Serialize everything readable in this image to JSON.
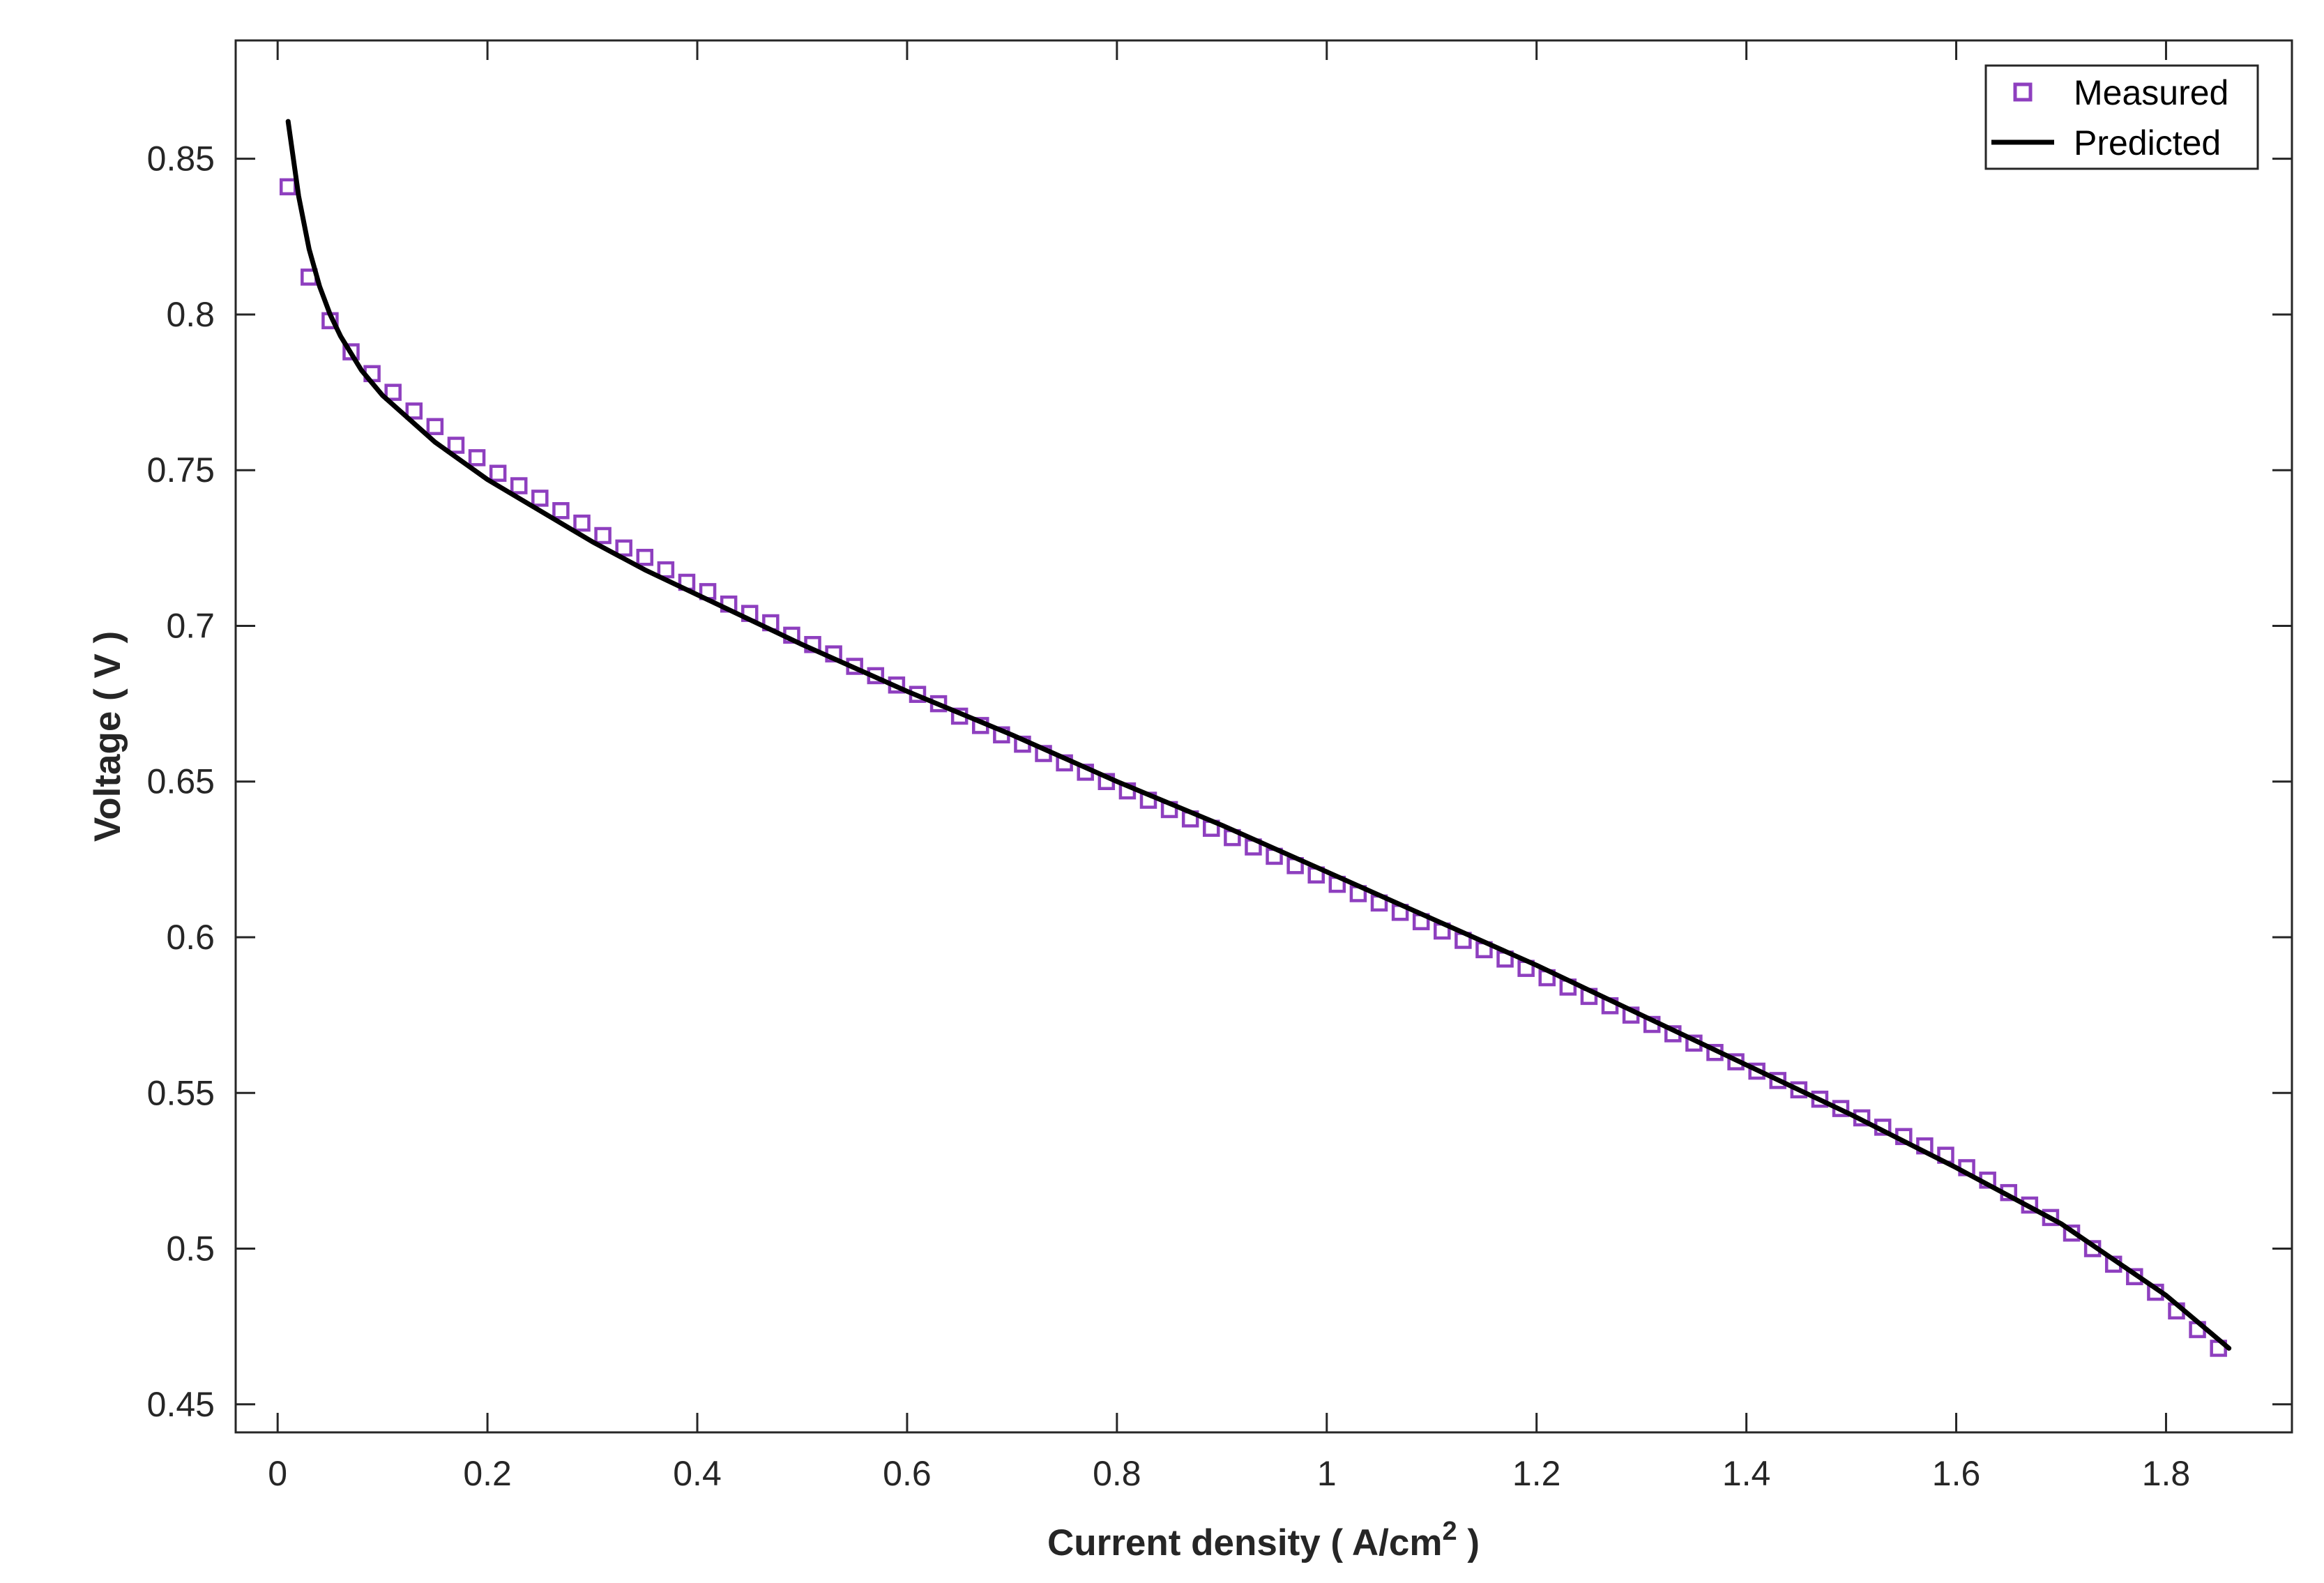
{
  "chart_data": {
    "type": "line",
    "xlabel": "Current density ( A/cm",
    "xlabel_sup": "2",
    "xlabel_end": " )",
    "ylabel": "Voltage ( V )",
    "xlim": [
      -0.04,
      1.92
    ],
    "ylim": [
      0.441,
      0.888
    ],
    "x_ticks": [
      0,
      0.2,
      0.4,
      0.6,
      0.8,
      1,
      1.2,
      1.4,
      1.6,
      1.8
    ],
    "x_tick_labels": [
      "0",
      "0.2",
      "0.4",
      "0.6",
      "0.8",
      "1",
      "1.2",
      "1.4",
      "1.6",
      "1.8"
    ],
    "y_ticks": [
      0.45,
      0.5,
      0.55,
      0.6,
      0.65,
      0.7,
      0.75,
      0.8,
      0.85
    ],
    "y_tick_labels": [
      "0.45",
      "0.5",
      "0.55",
      "0.6",
      "0.65",
      "0.7",
      "0.75",
      "0.8",
      "0.85"
    ],
    "grid": false,
    "legend_position": "top-right",
    "series": [
      {
        "name": "Measured",
        "style": "square-markers",
        "color": "#8e3fbf",
        "x": [
          0.01,
          0.03,
          0.05,
          0.07,
          0.09,
          0.11,
          0.13,
          0.15,
          0.17,
          0.19,
          0.21,
          0.23,
          0.25,
          0.27,
          0.29,
          0.31,
          0.33,
          0.35,
          0.37,
          0.39,
          0.41,
          0.43,
          0.45,
          0.47,
          0.49,
          0.51,
          0.53,
          0.55,
          0.57,
          0.59,
          0.61,
          0.63,
          0.65,
          0.67,
          0.69,
          0.71,
          0.73,
          0.75,
          0.77,
          0.79,
          0.81,
          0.83,
          0.85,
          0.87,
          0.89,
          0.91,
          0.93,
          0.95,
          0.97,
          0.99,
          1.01,
          1.03,
          1.05,
          1.07,
          1.09,
          1.11,
          1.13,
          1.15,
          1.17,
          1.19,
          1.21,
          1.23,
          1.25,
          1.27,
          1.29,
          1.31,
          1.33,
          1.35,
          1.37,
          1.39,
          1.41,
          1.43,
          1.45,
          1.47,
          1.49,
          1.51,
          1.53,
          1.55,
          1.57,
          1.59,
          1.61,
          1.63,
          1.65,
          1.67,
          1.69,
          1.71,
          1.73,
          1.75,
          1.77,
          1.79,
          1.81,
          1.83,
          1.85
        ],
        "y": [
          0.841,
          0.812,
          0.798,
          0.788,
          0.781,
          0.775,
          0.769,
          0.764,
          0.758,
          0.754,
          0.749,
          0.745,
          0.741,
          0.737,
          0.733,
          0.729,
          0.725,
          0.722,
          0.718,
          0.714,
          0.711,
          0.707,
          0.704,
          0.701,
          0.697,
          0.694,
          0.691,
          0.687,
          0.684,
          0.681,
          0.678,
          0.675,
          0.671,
          0.668,
          0.665,
          0.662,
          0.659,
          0.656,
          0.653,
          0.65,
          0.647,
          0.644,
          0.641,
          0.638,
          0.635,
          0.632,
          0.629,
          0.626,
          0.623,
          0.62,
          0.617,
          0.614,
          0.611,
          0.608,
          0.605,
          0.602,
          0.599,
          0.596,
          0.593,
          0.59,
          0.587,
          0.584,
          0.581,
          0.578,
          0.575,
          0.572,
          0.569,
          0.566,
          0.563,
          0.56,
          0.557,
          0.554,
          0.551,
          0.548,
          0.545,
          0.542,
          0.539,
          0.536,
          0.533,
          0.53,
          0.526,
          0.522,
          0.518,
          0.514,
          0.51,
          0.505,
          0.5,
          0.495,
          0.491,
          0.486,
          0.48,
          0.474,
          0.468
        ]
      },
      {
        "name": "Predicted",
        "style": "solid-line",
        "color": "#000000",
        "x": [
          0.01,
          0.02,
          0.03,
          0.04,
          0.05,
          0.06,
          0.08,
          0.1,
          0.12,
          0.15,
          0.2,
          0.25,
          0.3,
          0.35,
          0.4,
          0.5,
          0.6,
          0.7,
          0.8,
          0.9,
          1.0,
          1.1,
          1.2,
          1.3,
          1.4,
          1.5,
          1.6,
          1.7,
          1.8,
          1.86
        ],
        "y": [
          0.862,
          0.838,
          0.821,
          0.809,
          0.8,
          0.793,
          0.782,
          0.774,
          0.768,
          0.759,
          0.747,
          0.737,
          0.727,
          0.718,
          0.71,
          0.694,
          0.679,
          0.665,
          0.65,
          0.636,
          0.621,
          0.606,
          0.591,
          0.575,
          0.559,
          0.543,
          0.526,
          0.508,
          0.485,
          0.468
        ]
      }
    ]
  }
}
